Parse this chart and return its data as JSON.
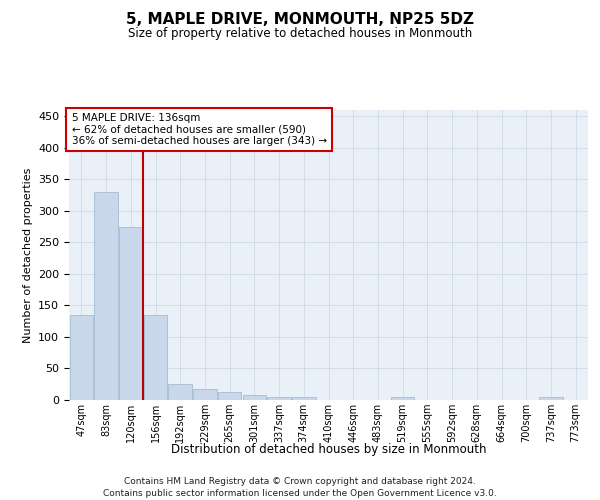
{
  "title": "5, MAPLE DRIVE, MONMOUTH, NP25 5DZ",
  "subtitle": "Size of property relative to detached houses in Monmouth",
  "xlabel": "Distribution of detached houses by size in Monmouth",
  "ylabel": "Number of detached properties",
  "bins": [
    "47sqm",
    "83sqm",
    "120sqm",
    "156sqm",
    "192sqm",
    "229sqm",
    "265sqm",
    "301sqm",
    "337sqm",
    "374sqm",
    "410sqm",
    "446sqm",
    "483sqm",
    "519sqm",
    "555sqm",
    "592sqm",
    "628sqm",
    "664sqm",
    "700sqm",
    "737sqm",
    "773sqm"
  ],
  "bar_heights": [
    135,
    330,
    275,
    135,
    25,
    18,
    13,
    8,
    5,
    4,
    0,
    0,
    0,
    5,
    0,
    0,
    0,
    0,
    0,
    5,
    0
  ],
  "bar_color": "#c8d8ea",
  "bar_edge_color": "#9ab4cc",
  "vline_x_index": 2.5,
  "vline_color": "#bb0000",
  "annotation_text": "5 MAPLE DRIVE: 136sqm\n← 62% of detached houses are smaller (590)\n36% of semi-detached houses are larger (343) →",
  "annotation_box_color": "#ffffff",
  "annotation_box_edge_color": "#cc0000",
  "ylim": [
    0,
    460
  ],
  "yticks": [
    0,
    50,
    100,
    150,
    200,
    250,
    300,
    350,
    400,
    450
  ],
  "footer_line1": "Contains HM Land Registry data © Crown copyright and database right 2024.",
  "footer_line2": "Contains public sector information licensed under the Open Government Licence v3.0.",
  "background_color": "#ffffff",
  "plot_bg_color": "#eaf0f8",
  "grid_color": "#c8d4e4"
}
